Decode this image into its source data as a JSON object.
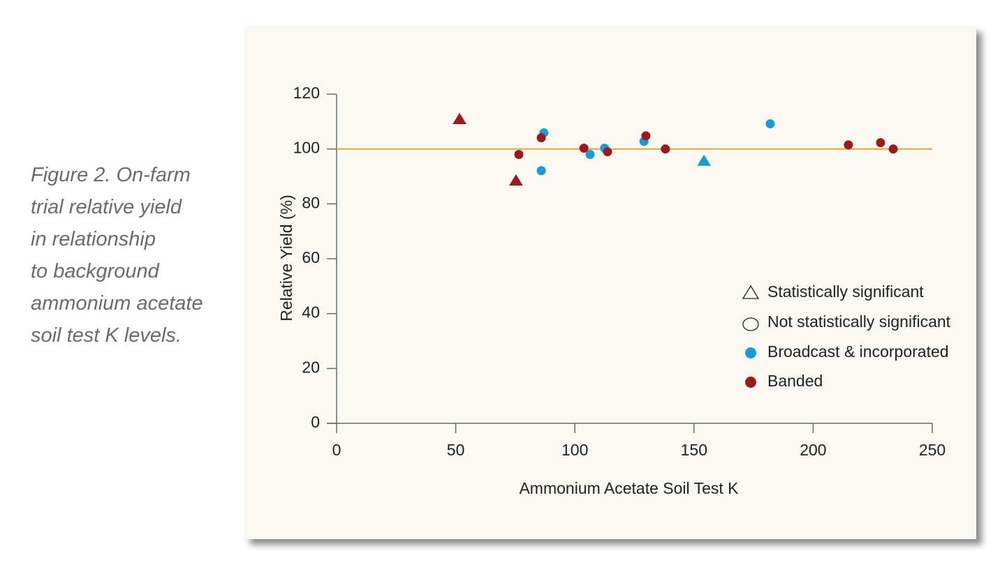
{
  "caption": [
    "Figure 2. On-farm",
    "trial relative yield",
    "in relationship",
    "to background",
    "ammonium acetate",
    "soil test K levels."
  ],
  "chart_data": {
    "type": "scatter",
    "xlabel": "Ammonium Acetate Soil Test K",
    "ylabel": "Relative Yield (%)",
    "xlim": [
      0,
      250
    ],
    "xticks": [
      0,
      50,
      100,
      150,
      200,
      250
    ],
    "ylim": [
      0,
      120
    ],
    "yticks": [
      0,
      20,
      40,
      60,
      80,
      100,
      120
    ],
    "reference_line": {
      "value": 100,
      "color": "#e8a33a"
    },
    "markers": [
      {
        "label": "Statistically significant",
        "shape": "triangle"
      },
      {
        "label": "Not statistically significant",
        "shape": "circle"
      }
    ],
    "series": [
      {
        "name": "Broadcast & incorporated",
        "color": "#1a9bd7",
        "x": [
          154.2,
          87.0,
          85.9,
          106.4,
          112.5,
          129.0,
          182.0
        ],
        "values": [
          95.7,
          105.9,
          92.1,
          98.0,
          100.3,
          102.8,
          109.2
        ],
        "significant": [
          true,
          false,
          false,
          false,
          false,
          false,
          false
        ]
      },
      {
        "name": "Banded",
        "color": "#9b1b1b",
        "x": [
          51.6,
          75.3,
          76.5,
          85.9,
          103.8,
          113.7,
          129.8,
          138.0,
          214.8,
          228.3,
          233.6
        ],
        "values": [
          110.9,
          88.5,
          98.0,
          104.1,
          100.3,
          99.0,
          104.8,
          100.0,
          101.5,
          102.3,
          100.0
        ],
        "significant": [
          true,
          true,
          false,
          false,
          false,
          false,
          false,
          false,
          false,
          false,
          false
        ]
      }
    ]
  }
}
